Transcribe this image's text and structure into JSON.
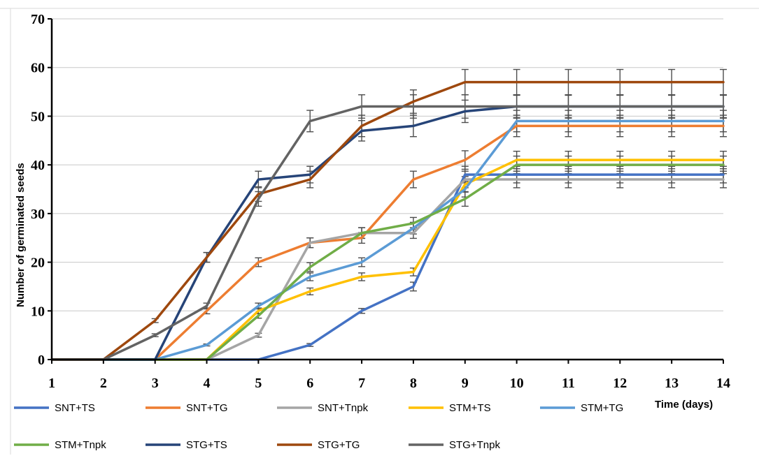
{
  "chart_data": {
    "type": "line",
    "title": "",
    "xlabel": "Time (days)",
    "ylabel": "Number of germinated seeds",
    "x": [
      1,
      2,
      3,
      4,
      5,
      6,
      7,
      8,
      9,
      10,
      11,
      12,
      13,
      14
    ],
    "xlim": [
      1,
      14
    ],
    "ylim": [
      0,
      70
    ],
    "yticks": [
      0,
      10,
      20,
      30,
      40,
      50,
      60,
      70
    ],
    "grid": "horizontal",
    "legend_position": "bottom",
    "error_bars": true,
    "series": [
      {
        "name": "SNT+TS",
        "color": "#4472C4",
        "values": [
          0,
          0,
          0,
          0,
          0,
          3,
          10,
          15,
          38,
          38,
          38,
          38,
          38,
          38
        ],
        "errors": [
          0,
          0,
          0,
          0,
          0,
          0.3,
          0.5,
          0.9,
          1.7,
          1.7,
          1.7,
          1.7,
          1.7,
          1.7
        ]
      },
      {
        "name": "SNT+TG",
        "color": "#ED7D31",
        "values": [
          0,
          0,
          0,
          10,
          20,
          24,
          25,
          37,
          41,
          48,
          48,
          48,
          48,
          48
        ],
        "errors": [
          0,
          0,
          0,
          0.6,
          0.9,
          1.0,
          1.1,
          1.7,
          1.9,
          2.2,
          2.2,
          2.2,
          2.2,
          2.2
        ]
      },
      {
        "name": "SNT+Tnpk",
        "color": "#A5A5A5",
        "values": [
          0,
          0,
          0,
          0,
          5,
          24,
          26,
          26,
          37,
          37,
          37,
          37,
          37,
          37
        ],
        "errors": [
          0,
          0,
          0,
          0,
          0.4,
          1.0,
          1.1,
          1.1,
          1.7,
          1.7,
          1.7,
          1.7,
          1.7,
          1.7
        ]
      },
      {
        "name": "STM+TS",
        "color": "#FFC000",
        "values": [
          0,
          0,
          0,
          0,
          10,
          14,
          17,
          18,
          36,
          41,
          41,
          41,
          41,
          41
        ],
        "errors": [
          0,
          0,
          0,
          0,
          0.6,
          0.7,
          0.8,
          0.8,
          1.6,
          1.8,
          1.8,
          1.8,
          1.8,
          1.8
        ]
      },
      {
        "name": "STM+TG",
        "color": "#5B9BD5",
        "values": [
          0,
          0,
          0,
          3,
          11,
          17,
          20,
          27,
          35,
          49,
          49,
          49,
          49,
          49
        ],
        "errors": [
          0,
          0,
          0,
          0.2,
          0.6,
          0.8,
          0.9,
          1.2,
          1.6,
          2.2,
          2.2,
          2.2,
          2.2,
          2.2
        ]
      },
      {
        "name": "STM+Tnpk",
        "color": "#70AD47",
        "values": [
          0,
          0,
          0,
          0,
          9,
          19,
          26,
          28,
          33,
          40,
          40,
          40,
          40,
          40
        ],
        "errors": [
          0,
          0,
          0,
          0,
          0.5,
          0.9,
          1.1,
          1.2,
          1.5,
          1.8,
          1.8,
          1.8,
          1.8,
          1.8
        ]
      },
      {
        "name": "STG+TS",
        "color": "#264478",
        "values": [
          0,
          0,
          0,
          21,
          37,
          38,
          47,
          48,
          51,
          52,
          52,
          52,
          52,
          52
        ],
        "errors": [
          0,
          0,
          0,
          1.0,
          1.7,
          1.7,
          2.1,
          2.2,
          2.3,
          2.3,
          2.3,
          2.3,
          2.3,
          2.3
        ]
      },
      {
        "name": "STG+TG",
        "color": "#9E480E",
        "values": [
          0,
          0,
          8,
          21,
          34,
          37,
          48,
          53,
          57,
          57,
          57,
          57,
          57,
          57
        ],
        "errors": [
          0,
          0,
          0.4,
          1.0,
          1.5,
          1.7,
          2.2,
          2.4,
          2.6,
          2.6,
          2.6,
          2.6,
          2.6,
          2.6
        ]
      },
      {
        "name": "STG+Tnpk",
        "color": "#636363",
        "values": [
          0,
          0,
          5,
          11,
          33,
          49,
          52,
          52,
          52,
          52,
          52,
          52,
          52,
          52
        ],
        "errors": [
          0,
          0,
          0.3,
          0.6,
          1.5,
          2.2,
          2.4,
          2.4,
          2.4,
          2.4,
          2.4,
          2.4,
          2.4,
          2.4
        ]
      }
    ]
  }
}
